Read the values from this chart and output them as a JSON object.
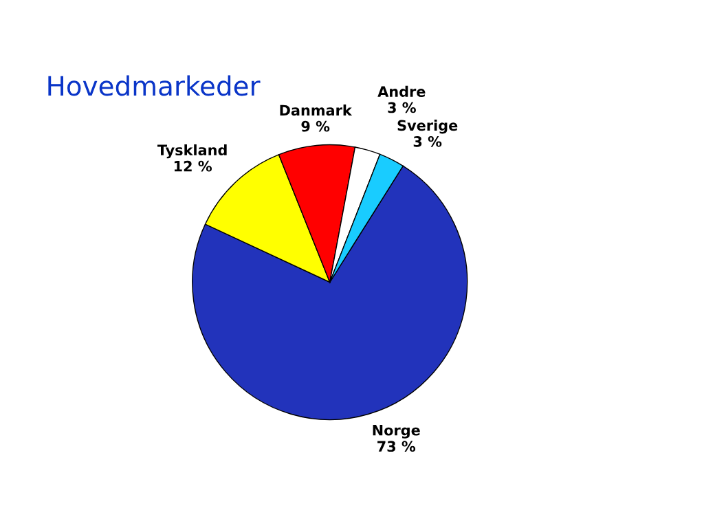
{
  "chart_data": {
    "type": "pie",
    "title": "Hovedmarkeder",
    "categories": [
      "Norge",
      "Tyskland",
      "Danmark",
      "Andre",
      "Sverige"
    ],
    "values": [
      73,
      12,
      9,
      3,
      3
    ],
    "colors": [
      "#2233bb",
      "#ffff00",
      "#ff0000",
      "#ffffff",
      "#19ccff"
    ],
    "value_labels": [
      "73 %",
      "12 %",
      "9 %",
      "3 %",
      "3 %"
    ]
  }
}
